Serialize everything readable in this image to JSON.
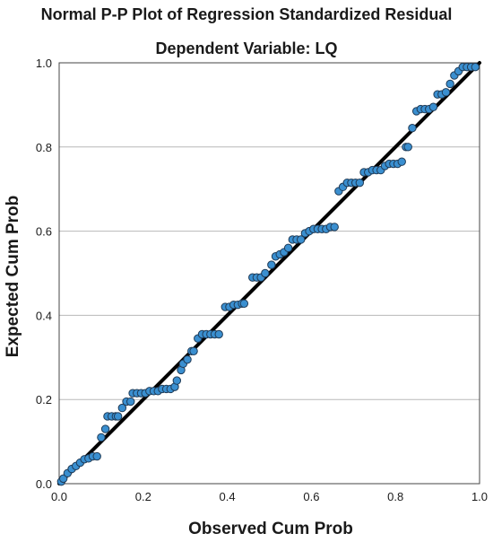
{
  "chart_data": {
    "type": "scatter",
    "title": "Normal P-P Plot of Regression Standardized Residual",
    "subtitle": "Dependent Variable: LQ",
    "xlabel": "Observed Cum Prob",
    "ylabel": "Expected Cum Prob",
    "xlim": [
      0.0,
      1.0
    ],
    "ylim": [
      0.0,
      1.0
    ],
    "x_ticks": [
      0.0,
      0.2,
      0.4,
      0.6,
      0.8,
      1.0
    ],
    "y_ticks": [
      0.0,
      0.2,
      0.4,
      0.6,
      0.8,
      1.0
    ],
    "x_tick_labels": [
      "0.0",
      "0.2",
      "0.4",
      "0.6",
      "0.8",
      "1.0"
    ],
    "y_tick_labels": [
      "0.0",
      "0.2",
      "0.4",
      "0.6",
      "0.8",
      "1.0"
    ],
    "grid": "horizontal",
    "reference_line": {
      "x": [
        0.0,
        1.0
      ],
      "y": [
        0.0,
        1.0
      ]
    },
    "colors": {
      "marker_fill": "#3A8FD0",
      "marker_edge": "#1F3B57",
      "reference_line": "#000000",
      "grid": "#B8B8B8",
      "frame": "#444444"
    },
    "points": {
      "x": [
        0.005,
        0.01,
        0.02,
        0.03,
        0.04,
        0.05,
        0.06,
        0.07,
        0.08,
        0.09,
        0.1,
        0.11,
        0.115,
        0.125,
        0.135,
        0.14,
        0.15,
        0.16,
        0.17,
        0.175,
        0.185,
        0.195,
        0.205,
        0.215,
        0.225,
        0.235,
        0.245,
        0.255,
        0.265,
        0.275,
        0.28,
        0.29,
        0.295,
        0.305,
        0.315,
        0.32,
        0.33,
        0.34,
        0.35,
        0.36,
        0.37,
        0.38,
        0.395,
        0.405,
        0.415,
        0.425,
        0.435,
        0.44,
        0.46,
        0.47,
        0.48,
        0.49,
        0.505,
        0.515,
        0.525,
        0.535,
        0.545,
        0.555,
        0.565,
        0.575,
        0.585,
        0.595,
        0.605,
        0.615,
        0.625,
        0.635,
        0.645,
        0.655,
        0.665,
        0.675,
        0.685,
        0.695,
        0.705,
        0.715,
        0.725,
        0.735,
        0.745,
        0.755,
        0.765,
        0.775,
        0.785,
        0.795,
        0.805,
        0.815,
        0.825,
        0.83,
        0.84,
        0.85,
        0.86,
        0.87,
        0.88,
        0.89,
        0.9,
        0.91,
        0.92,
        0.93,
        0.94,
        0.95,
        0.96,
        0.97,
        0.98,
        0.99
      ],
      "y": [
        0.005,
        0.012,
        0.025,
        0.035,
        0.042,
        0.05,
        0.058,
        0.06,
        0.065,
        0.065,
        0.11,
        0.13,
        0.16,
        0.16,
        0.16,
        0.16,
        0.18,
        0.195,
        0.195,
        0.215,
        0.215,
        0.215,
        0.215,
        0.22,
        0.22,
        0.22,
        0.225,
        0.225,
        0.225,
        0.23,
        0.245,
        0.27,
        0.285,
        0.295,
        0.315,
        0.315,
        0.345,
        0.355,
        0.355,
        0.355,
        0.355,
        0.355,
        0.42,
        0.42,
        0.425,
        0.425,
        0.428,
        0.428,
        0.49,
        0.49,
        0.49,
        0.5,
        0.52,
        0.54,
        0.545,
        0.55,
        0.56,
        0.58,
        0.58,
        0.58,
        0.595,
        0.6,
        0.605,
        0.605,
        0.605,
        0.605,
        0.61,
        0.61,
        0.695,
        0.705,
        0.715,
        0.715,
        0.715,
        0.715,
        0.74,
        0.74,
        0.745,
        0.745,
        0.745,
        0.755,
        0.76,
        0.76,
        0.76,
        0.765,
        0.8,
        0.8,
        0.845,
        0.885,
        0.89,
        0.89,
        0.89,
        0.895,
        0.925,
        0.925,
        0.93,
        0.95,
        0.97,
        0.98,
        0.99,
        0.99,
        0.99,
        0.99
      ]
    }
  }
}
